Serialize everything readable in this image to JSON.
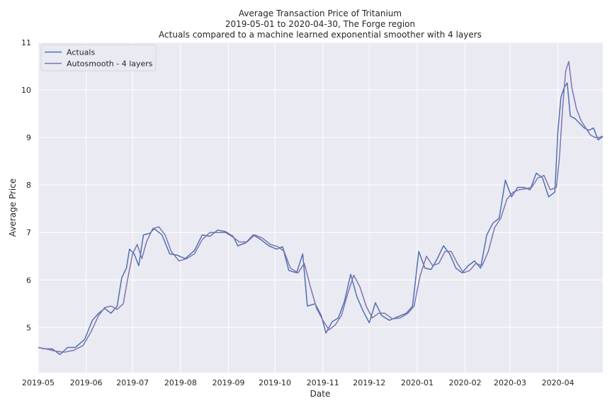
{
  "chart_data": {
    "type": "line",
    "title": "Average Transaction Price of Tritanium",
    "subtitle_lines": [
      "2019-05-01 to 2020-04-30, The Forge region",
      "Actuals compared to a machine learned exponential smoother with 4 layers"
    ],
    "xlabel": "Date",
    "ylabel": "Average Price",
    "xlim": [
      "2019-05-01",
      "2020-04-30"
    ],
    "ylim": [
      4.05,
      11.0
    ],
    "x_ticks": [
      "2019-05",
      "2019-06",
      "2019-07",
      "2019-08",
      "2019-09",
      "2019-10",
      "2019-11",
      "2019-12",
      "2020-01",
      "2020-02",
      "2020-03",
      "2020-04"
    ],
    "y_ticks": [
      5,
      6,
      7,
      8,
      9,
      10,
      11
    ],
    "grid": true,
    "legend_position": "top-left",
    "colors": {
      "background": "#eaeaf2",
      "grid": "#ffffff",
      "actuals": "#4c72b0",
      "smooth": "#8172b3"
    },
    "series": [
      {
        "name": "Actuals",
        "points": [
          [
            "2019-05-01",
            4.58
          ],
          [
            "2019-05-05",
            4.55
          ],
          [
            "2019-05-10",
            4.55
          ],
          [
            "2019-05-15",
            4.43
          ],
          [
            "2019-05-20",
            4.58
          ],
          [
            "2019-05-25",
            4.58
          ],
          [
            "2019-05-31",
            4.75
          ],
          [
            "2019-06-05",
            5.15
          ],
          [
            "2019-06-09",
            5.3
          ],
          [
            "2019-06-13",
            5.4
          ],
          [
            "2019-06-17",
            5.3
          ],
          [
            "2019-06-21",
            5.45
          ],
          [
            "2019-06-24",
            6.05
          ],
          [
            "2019-06-27",
            6.25
          ],
          [
            "2019-06-29",
            6.65
          ],
          [
            "2019-07-02",
            6.55
          ],
          [
            "2019-07-05",
            6.3
          ],
          [
            "2019-07-08",
            6.95
          ],
          [
            "2019-07-12",
            6.98
          ],
          [
            "2019-07-15",
            7.08
          ],
          [
            "2019-07-20",
            6.95
          ],
          [
            "2019-07-25",
            6.55
          ],
          [
            "2019-07-30",
            6.52
          ],
          [
            "2019-08-04",
            6.45
          ],
          [
            "2019-08-10",
            6.62
          ],
          [
            "2019-08-15",
            6.95
          ],
          [
            "2019-08-20",
            6.92
          ],
          [
            "2019-08-25",
            7.05
          ],
          [
            "2019-08-30",
            7.02
          ],
          [
            "2019-09-04",
            6.92
          ],
          [
            "2019-09-07",
            6.72
          ],
          [
            "2019-09-12",
            6.78
          ],
          [
            "2019-09-17",
            6.95
          ],
          [
            "2019-09-22",
            6.85
          ],
          [
            "2019-09-27",
            6.72
          ],
          [
            "2019-10-02",
            6.65
          ],
          [
            "2019-10-06",
            6.7
          ],
          [
            "2019-10-10",
            6.2
          ],
          [
            "2019-10-15",
            6.15
          ],
          [
            "2019-10-19",
            6.55
          ],
          [
            "2019-10-22",
            5.45
          ],
          [
            "2019-10-27",
            5.5
          ],
          [
            "2019-10-31",
            5.25
          ],
          [
            "2019-11-03",
            4.88
          ],
          [
            "2019-11-07",
            5.12
          ],
          [
            "2019-11-11",
            5.2
          ],
          [
            "2019-11-15",
            5.55
          ],
          [
            "2019-11-19",
            6.12
          ],
          [
            "2019-11-23",
            5.65
          ],
          [
            "2019-11-27",
            5.35
          ],
          [
            "2019-12-01",
            5.1
          ],
          [
            "2019-12-05",
            5.52
          ],
          [
            "2019-12-09",
            5.25
          ],
          [
            "2019-12-14",
            5.15
          ],
          [
            "2019-12-19",
            5.22
          ],
          [
            "2019-12-25",
            5.3
          ],
          [
            "2019-12-29",
            5.45
          ],
          [
            "2020-01-02",
            6.6
          ],
          [
            "2020-01-06",
            6.25
          ],
          [
            "2020-01-10",
            6.22
          ],
          [
            "2020-01-14",
            6.45
          ],
          [
            "2020-01-18",
            6.72
          ],
          [
            "2020-01-22",
            6.55
          ],
          [
            "2020-01-26",
            6.25
          ],
          [
            "2020-01-30",
            6.15
          ],
          [
            "2020-02-03",
            6.3
          ],
          [
            "2020-02-07",
            6.4
          ],
          [
            "2020-02-11",
            6.25
          ],
          [
            "2020-02-15",
            6.95
          ],
          [
            "2020-02-19",
            7.2
          ],
          [
            "2020-02-23",
            7.3
          ],
          [
            "2020-02-27",
            8.1
          ],
          [
            "2020-03-02",
            7.75
          ],
          [
            "2020-03-06",
            7.95
          ],
          [
            "2020-03-10",
            7.95
          ],
          [
            "2020-03-14",
            7.9
          ],
          [
            "2020-03-18",
            8.25
          ],
          [
            "2020-03-22",
            8.15
          ],
          [
            "2020-03-26",
            7.75
          ],
          [
            "2020-03-30",
            7.85
          ],
          [
            "2020-04-01",
            9.15
          ],
          [
            "2020-04-03",
            9.85
          ],
          [
            "2020-04-05",
            10.05
          ],
          [
            "2020-04-07",
            10.15
          ],
          [
            "2020-04-09",
            9.45
          ],
          [
            "2020-04-12",
            9.4
          ],
          [
            "2020-04-15",
            9.3
          ],
          [
            "2020-04-18",
            9.2
          ],
          [
            "2020-04-21",
            9.15
          ],
          [
            "2020-04-24",
            9.2
          ],
          [
            "2020-04-27",
            8.95
          ],
          [
            "2020-04-30",
            9.02
          ]
        ]
      },
      {
        "name": "Autosmooth - 4 layers",
        "points": [
          [
            "2019-05-01",
            4.58
          ],
          [
            "2019-05-06",
            4.55
          ],
          [
            "2019-05-12",
            4.5
          ],
          [
            "2019-05-18",
            4.48
          ],
          [
            "2019-05-24",
            4.52
          ],
          [
            "2019-05-30",
            4.62
          ],
          [
            "2019-06-04",
            4.9
          ],
          [
            "2019-06-09",
            5.25
          ],
          [
            "2019-06-13",
            5.42
          ],
          [
            "2019-06-17",
            5.45
          ],
          [
            "2019-06-21",
            5.38
          ],
          [
            "2019-06-25",
            5.5
          ],
          [
            "2019-06-28",
            6.05
          ],
          [
            "2019-07-01",
            6.55
          ],
          [
            "2019-07-04",
            6.75
          ],
          [
            "2019-07-07",
            6.45
          ],
          [
            "2019-07-10",
            6.8
          ],
          [
            "2019-07-14",
            7.08
          ],
          [
            "2019-07-18",
            7.12
          ],
          [
            "2019-07-22",
            6.95
          ],
          [
            "2019-07-26",
            6.6
          ],
          [
            "2019-07-31",
            6.4
          ],
          [
            "2019-08-05",
            6.45
          ],
          [
            "2019-08-10",
            6.55
          ],
          [
            "2019-08-15",
            6.85
          ],
          [
            "2019-08-20",
            7.0
          ],
          [
            "2019-08-25",
            7.0
          ],
          [
            "2019-08-30",
            7.0
          ],
          [
            "2019-09-04",
            6.9
          ],
          [
            "2019-09-08",
            6.8
          ],
          [
            "2019-09-13",
            6.8
          ],
          [
            "2019-09-18",
            6.95
          ],
          [
            "2019-09-23",
            6.88
          ],
          [
            "2019-09-28",
            6.75
          ],
          [
            "2019-10-03",
            6.7
          ],
          [
            "2019-10-07",
            6.6
          ],
          [
            "2019-10-11",
            6.25
          ],
          [
            "2019-10-16",
            6.15
          ],
          [
            "2019-10-20",
            6.35
          ],
          [
            "2019-10-24",
            5.85
          ],
          [
            "2019-10-28",
            5.4
          ],
          [
            "2019-11-01",
            5.15
          ],
          [
            "2019-11-05",
            4.95
          ],
          [
            "2019-11-09",
            5.05
          ],
          [
            "2019-11-13",
            5.25
          ],
          [
            "2019-11-17",
            5.7
          ],
          [
            "2019-11-21",
            6.1
          ],
          [
            "2019-11-25",
            5.85
          ],
          [
            "2019-11-29",
            5.45
          ],
          [
            "2019-12-03",
            5.2
          ],
          [
            "2019-12-07",
            5.3
          ],
          [
            "2019-12-11",
            5.3
          ],
          [
            "2019-12-16",
            5.18
          ],
          [
            "2019-12-21",
            5.2
          ],
          [
            "2019-12-26",
            5.3
          ],
          [
            "2019-12-30",
            5.45
          ],
          [
            "2020-01-03",
            6.1
          ],
          [
            "2020-01-07",
            6.5
          ],
          [
            "2020-01-11",
            6.3
          ],
          [
            "2020-01-15",
            6.35
          ],
          [
            "2020-01-19",
            6.6
          ],
          [
            "2020-01-23",
            6.6
          ],
          [
            "2020-01-27",
            6.35
          ],
          [
            "2020-01-31",
            6.15
          ],
          [
            "2020-02-04",
            6.2
          ],
          [
            "2020-02-08",
            6.35
          ],
          [
            "2020-02-12",
            6.3
          ],
          [
            "2020-02-16",
            6.6
          ],
          [
            "2020-02-20",
            7.1
          ],
          [
            "2020-02-24",
            7.3
          ],
          [
            "2020-02-28",
            7.7
          ],
          [
            "2020-03-03",
            7.85
          ],
          [
            "2020-03-07",
            7.9
          ],
          [
            "2020-03-11",
            7.92
          ],
          [
            "2020-03-15",
            7.95
          ],
          [
            "2020-03-19",
            8.15
          ],
          [
            "2020-03-23",
            8.2
          ],
          [
            "2020-03-27",
            7.9
          ],
          [
            "2020-03-31",
            7.95
          ],
          [
            "2020-04-02",
            8.6
          ],
          [
            "2020-04-04",
            9.6
          ],
          [
            "2020-04-06",
            10.4
          ],
          [
            "2020-04-08",
            10.6
          ],
          [
            "2020-04-10",
            10.05
          ],
          [
            "2020-04-13",
            9.6
          ],
          [
            "2020-04-16",
            9.35
          ],
          [
            "2020-04-19",
            9.2
          ],
          [
            "2020-04-22",
            9.05
          ],
          [
            "2020-04-25",
            9.0
          ],
          [
            "2020-04-28",
            9.0
          ],
          [
            "2020-04-30",
            9.03
          ]
        ]
      }
    ]
  }
}
